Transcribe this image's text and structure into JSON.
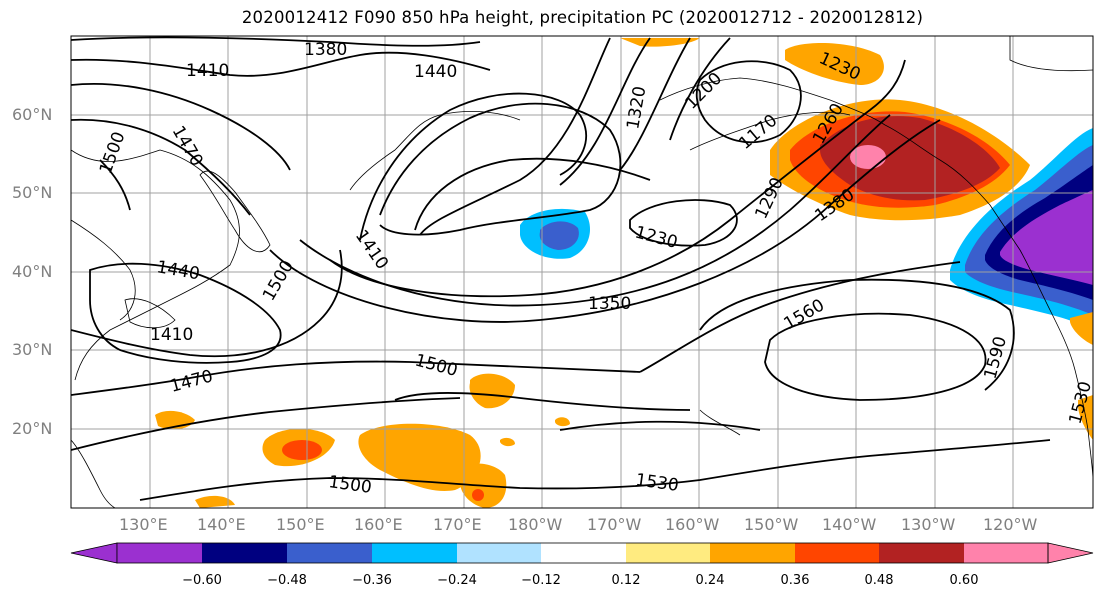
{
  "title": "2020012412 F090 850 hPa height, precipitation PC (2020012712 - 2020012812)",
  "lon_labels": [
    "130°E",
    "140°E",
    "150°E",
    "160°E",
    "170°E",
    "180°W",
    "170°W",
    "160°W",
    "150°W",
    "140°W",
    "130°W",
    "120°W"
  ],
  "lat_labels": [
    "60°N",
    "50°N",
    "40°N",
    "30°N",
    "20°N"
  ],
  "contour_labels": [
    "1380",
    "1410",
    "1440",
    "1470",
    "1500",
    "1320",
    "1200",
    "1230",
    "1260",
    "1170",
    "1290",
    "1380",
    "1410",
    "1230",
    "1500",
    "1440",
    "1350",
    "1560",
    "1410",
    "1590",
    "1470",
    "1500",
    "1530",
    "1500",
    "1530"
  ],
  "colorbar": {
    "colors": [
      "#9b30d0",
      "#000080",
      "#3a5fcd",
      "#00bfff",
      "#b0e2ff",
      "#ffffff",
      "#ffeb80",
      "#ffa500",
      "#ff4500",
      "#b22222",
      "#ff82ab"
    ],
    "labels": [
      "−0.60",
      "−0.48",
      "−0.36",
      "−0.24",
      "−0.12",
      "0.12",
      "0.24",
      "0.36",
      "0.48",
      "0.60"
    ]
  }
}
